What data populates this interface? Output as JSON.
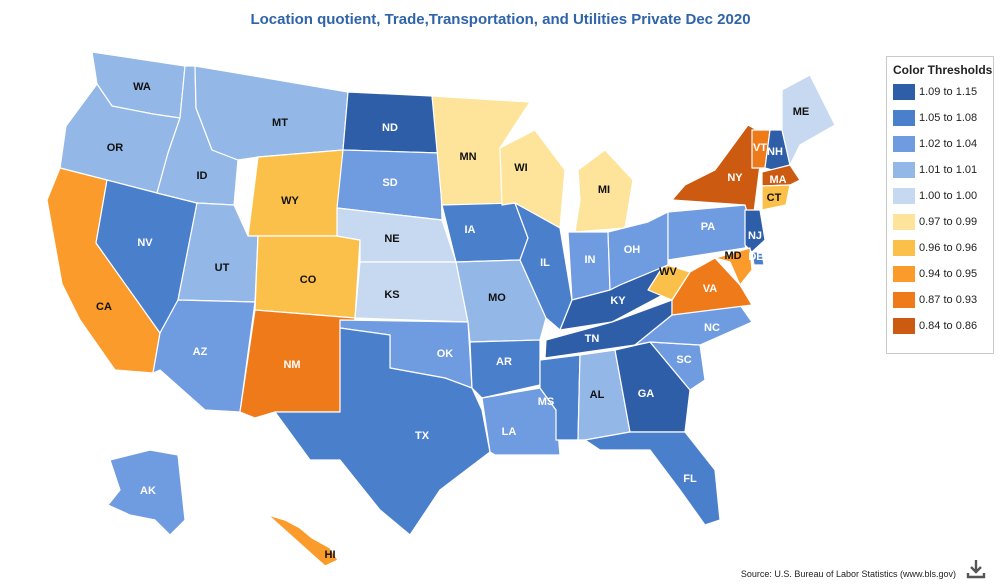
{
  "title": "Location quotient, Trade,Transportation, and Utilities Private Dec 2020",
  "legend": {
    "title": "Color Thresholds",
    "items": [
      {
        "label": "1.09 to 1.15",
        "color": "#2f5ea8"
      },
      {
        "label": "1.05 to 1.08",
        "color": "#4a7fcc"
      },
      {
        "label": "1.02 to 1.04",
        "color": "#6f9be0"
      },
      {
        "label": "1.01 to 1.01",
        "color": "#93b7e6"
      },
      {
        "label": "1.00 to 1.00",
        "color": "#c6d9f1"
      },
      {
        "label": "0.97 to 0.99",
        "color": "#fde49a"
      },
      {
        "label": "0.96 to 0.96",
        "color": "#fbc04a"
      },
      {
        "label": "0.94 to 0.95",
        "color": "#fb9b2c"
      },
      {
        "label": "0.87 to 0.93",
        "color": "#ef7a1a"
      },
      {
        "label": "0.84 to 0.86",
        "color": "#cc5a10"
      }
    ]
  },
  "states": [
    {
      "abbr": "WA",
      "bin": 3
    },
    {
      "abbr": "OR",
      "bin": 3
    },
    {
      "abbr": "CA",
      "bin": 7
    },
    {
      "abbr": "NV",
      "bin": 1
    },
    {
      "abbr": "ID",
      "bin": 3
    },
    {
      "abbr": "MT",
      "bin": 3
    },
    {
      "abbr": "WY",
      "bin": 6
    },
    {
      "abbr": "UT",
      "bin": 3
    },
    {
      "abbr": "CO",
      "bin": 6
    },
    {
      "abbr": "AZ",
      "bin": 2
    },
    {
      "abbr": "NM",
      "bin": 8
    },
    {
      "abbr": "ND",
      "bin": 0
    },
    {
      "abbr": "SD",
      "bin": 2
    },
    {
      "abbr": "NE",
      "bin": 4
    },
    {
      "abbr": "KS",
      "bin": 4
    },
    {
      "abbr": "OK",
      "bin": 2
    },
    {
      "abbr": "TX",
      "bin": 1
    },
    {
      "abbr": "MN",
      "bin": 5
    },
    {
      "abbr": "IA",
      "bin": 1
    },
    {
      "abbr": "MO",
      "bin": 3
    },
    {
      "abbr": "AR",
      "bin": 1
    },
    {
      "abbr": "LA",
      "bin": 2
    },
    {
      "abbr": "WI",
      "bin": 5
    },
    {
      "abbr": "IL",
      "bin": 1
    },
    {
      "abbr": "MI",
      "bin": 5
    },
    {
      "abbr": "IN",
      "bin": 2
    },
    {
      "abbr": "OH",
      "bin": 2
    },
    {
      "abbr": "KY",
      "bin": 0
    },
    {
      "abbr": "TN",
      "bin": 0
    },
    {
      "abbr": "MS",
      "bin": 1
    },
    {
      "abbr": "AL",
      "bin": 3
    },
    {
      "abbr": "GA",
      "bin": 0
    },
    {
      "abbr": "FL",
      "bin": 1
    },
    {
      "abbr": "SC",
      "bin": 2
    },
    {
      "abbr": "NC",
      "bin": 2
    },
    {
      "abbr": "VA",
      "bin": 8
    },
    {
      "abbr": "WV",
      "bin": 6
    },
    {
      "abbr": "PA",
      "bin": 2
    },
    {
      "abbr": "NY",
      "bin": 9
    },
    {
      "abbr": "VT",
      "bin": 8
    },
    {
      "abbr": "NH",
      "bin": 0
    },
    {
      "abbr": "ME",
      "bin": 4
    },
    {
      "abbr": "MA",
      "bin": 9
    },
    {
      "abbr": "CT",
      "bin": 6
    },
    {
      "abbr": "NJ",
      "bin": 0
    },
    {
      "abbr": "DE",
      "bin": 1
    },
    {
      "abbr": "MD",
      "bin": 7
    },
    {
      "abbr": "AK",
      "bin": 2
    },
    {
      "abbr": "HI",
      "bin": 7
    }
  ],
  "source": "Source: U.S. Bureau of Labor Statistics (www.bls.gov)",
  "download_icon": "download-icon"
}
